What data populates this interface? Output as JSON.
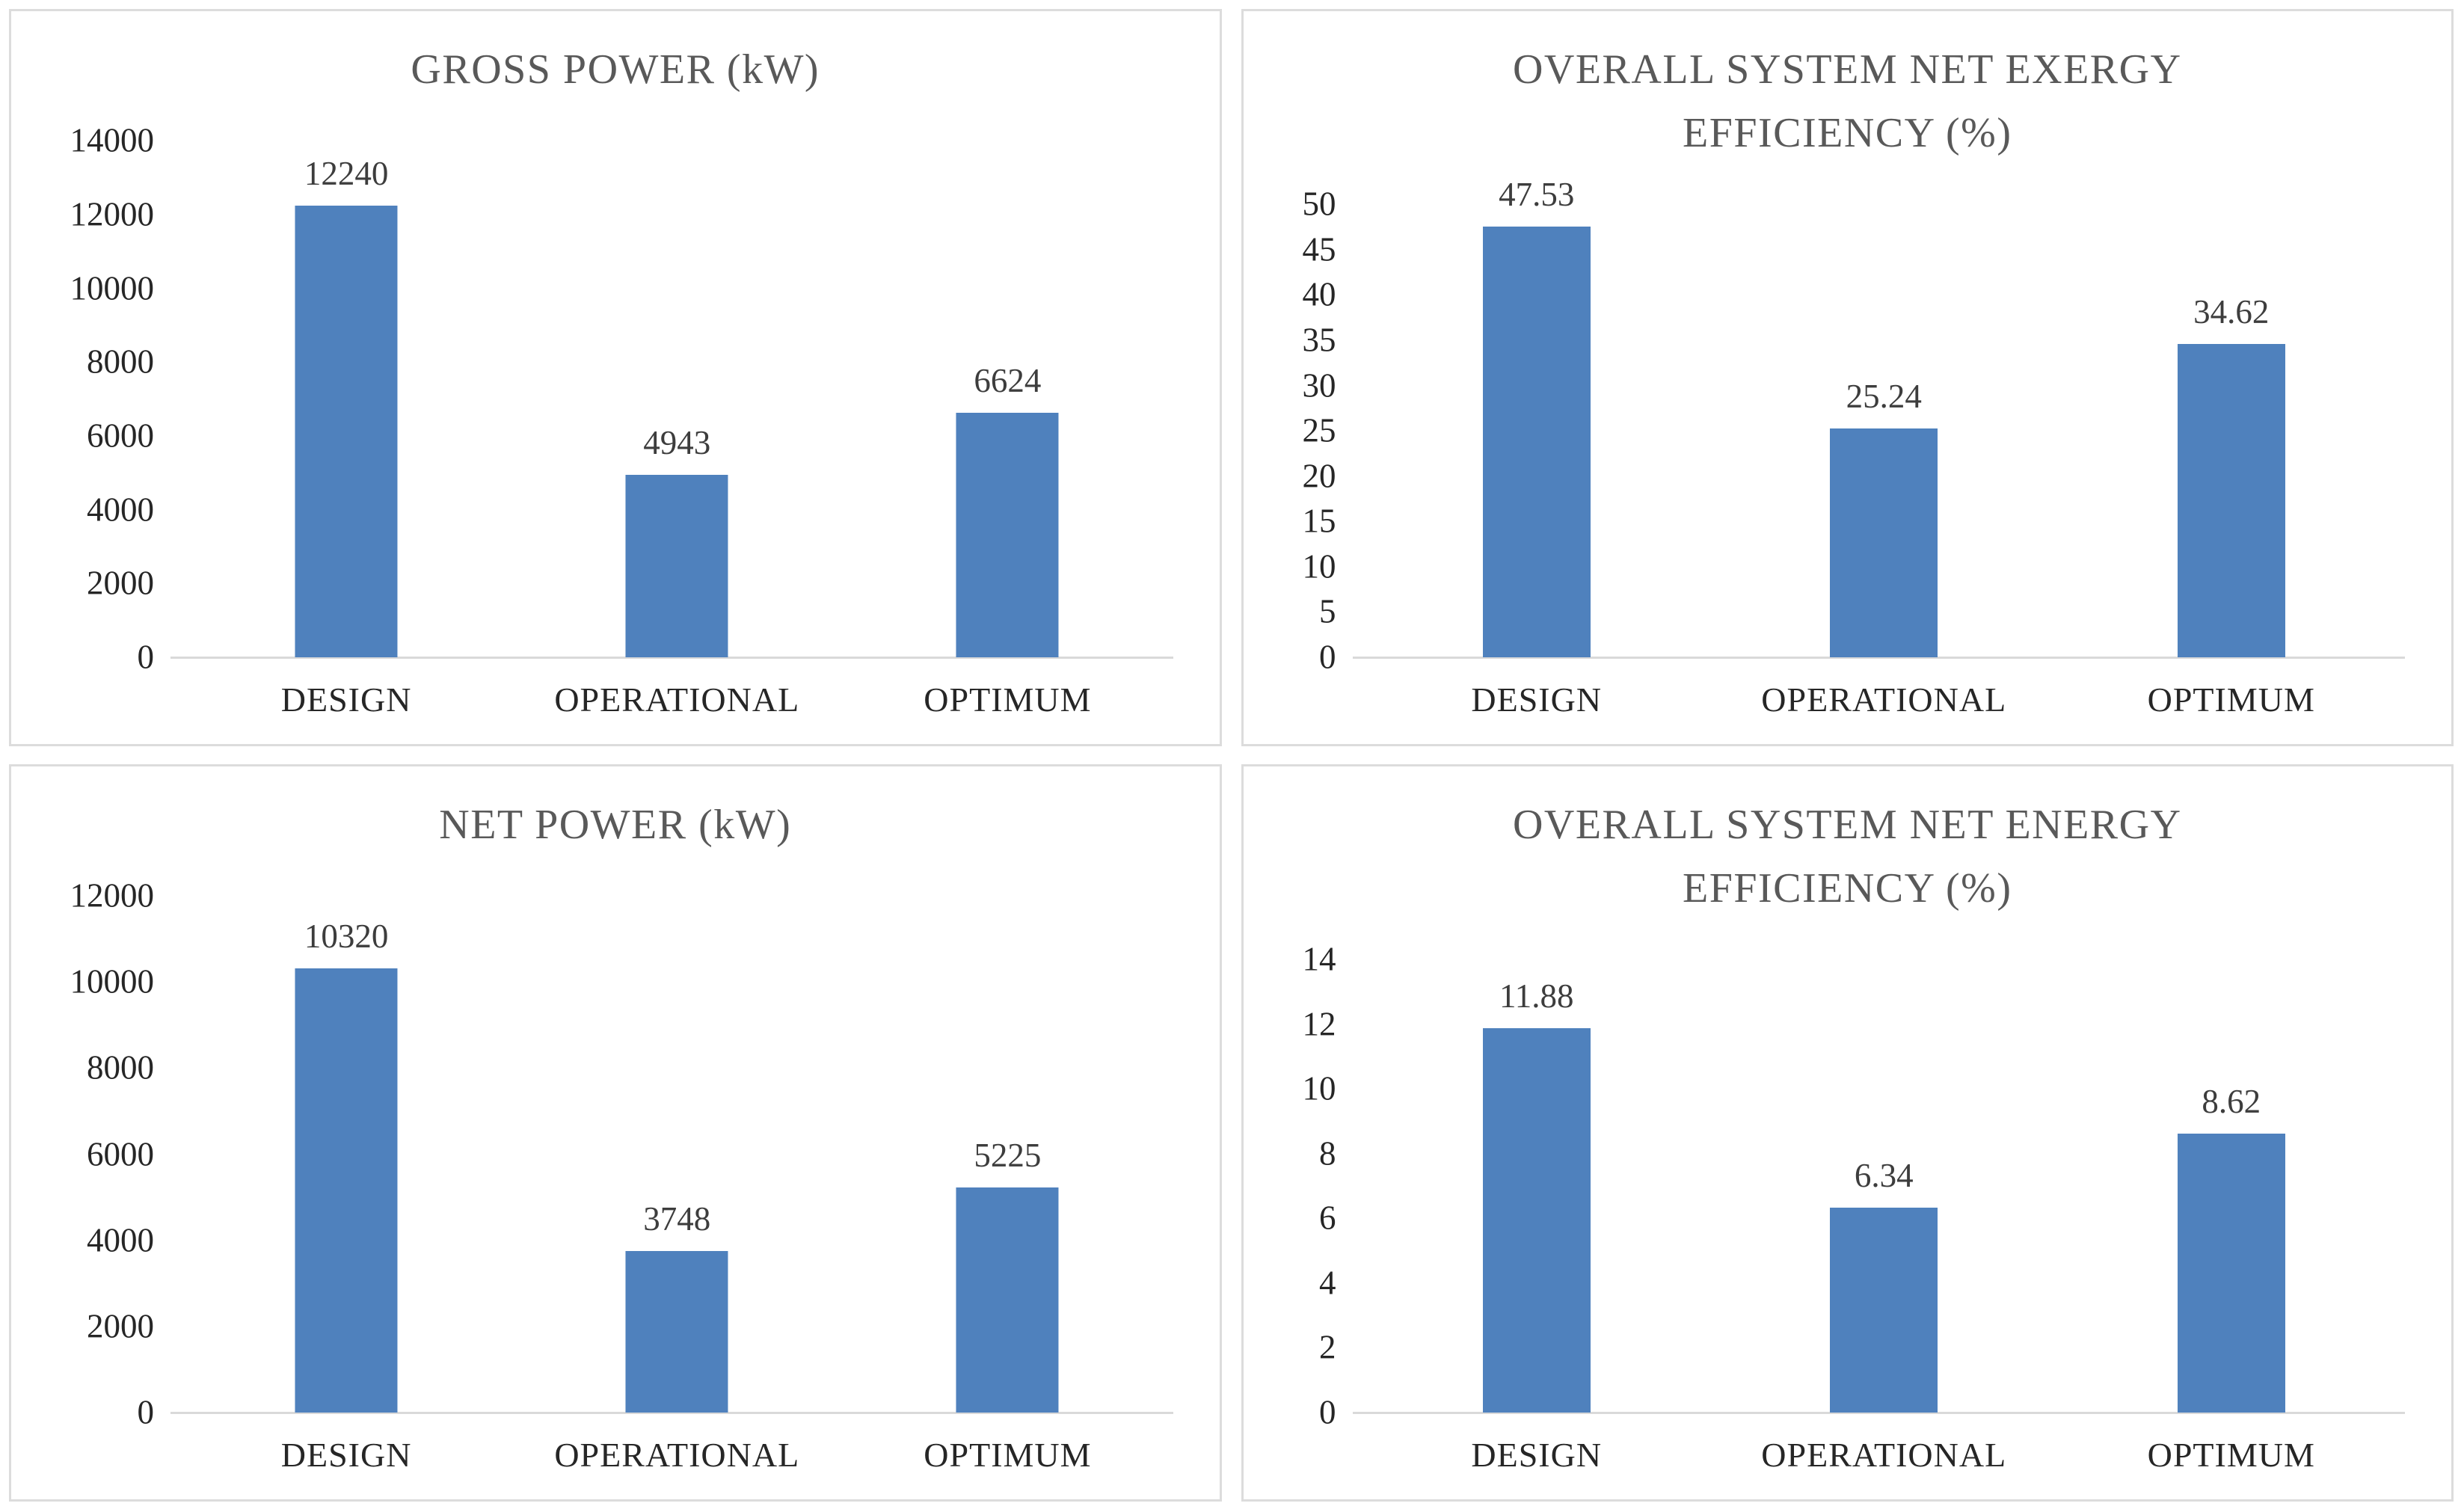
{
  "figure": {
    "kind": "2x2-bar-chart-grid",
    "background": "#ffffff"
  },
  "colors": {
    "bar": "#4f81bd",
    "title_text": "#595959",
    "axis_text": "#262626",
    "data_label_text": "#3d3d3d",
    "axis_line": "#d9d9d9",
    "panel_border": "#dcdcdc"
  },
  "chart_data": [
    {
      "type": "bar",
      "title": "GROSS POWER (kW)",
      "title_lines": [
        "GROSS POWER (kW)"
      ],
      "categories": [
        "DESIGN",
        "OPERATIONAL",
        "OPTIMUM"
      ],
      "values": [
        12240,
        4943,
        6624
      ],
      "value_labels": [
        "12240",
        "4943",
        "6624"
      ],
      "xlabel": "",
      "ylabel": "",
      "ylim": [
        0,
        14000
      ],
      "yticks": [
        0,
        2000,
        4000,
        6000,
        8000,
        10000,
        12000,
        14000
      ],
      "ytick_labels": [
        "0",
        "2000",
        "4000",
        "6000",
        "8000",
        "10000",
        "12000",
        "14000"
      ],
      "grid": false,
      "legend": false
    },
    {
      "type": "bar",
      "title": "OVERALL SYSTEM NET EXERGY EFFICIENCY (%)",
      "title_lines": [
        "OVERALL SYSTEM NET EXERGY",
        "EFFICIENCY (%)"
      ],
      "categories": [
        "DESIGN",
        "OPERATIONAL",
        "OPTIMUM"
      ],
      "values": [
        47.53,
        25.24,
        34.62
      ],
      "value_labels": [
        "47.53",
        "25.24",
        "34.62"
      ],
      "xlabel": "",
      "ylabel": "",
      "ylim": [
        0,
        50
      ],
      "yticks": [
        0,
        5,
        10,
        15,
        20,
        25,
        30,
        35,
        40,
        45,
        50
      ],
      "ytick_labels": [
        "0",
        "5",
        "10",
        "15",
        "20",
        "25",
        "30",
        "35",
        "40",
        "45",
        "50"
      ],
      "grid": false,
      "legend": false
    },
    {
      "type": "bar",
      "title": "NET POWER (kW)",
      "title_lines": [
        "NET POWER (kW)"
      ],
      "categories": [
        "DESIGN",
        "OPERATIONAL",
        "OPTIMUM"
      ],
      "values": [
        10320,
        3748,
        5225
      ],
      "value_labels": [
        "10320",
        "3748",
        "5225"
      ],
      "xlabel": "",
      "ylabel": "",
      "ylim": [
        0,
        12000
      ],
      "yticks": [
        0,
        2000,
        4000,
        6000,
        8000,
        10000,
        12000
      ],
      "ytick_labels": [
        "0",
        "2000",
        "4000",
        "6000",
        "8000",
        "10000",
        "12000"
      ],
      "grid": false,
      "legend": false
    },
    {
      "type": "bar",
      "title": "OVERALL SYSTEM NET ENERGY EFFICIENCY (%)",
      "title_lines": [
        "OVERALL SYSTEM NET ENERGY",
        "EFFICIENCY (%)"
      ],
      "categories": [
        "DESIGN",
        "OPERATIONAL",
        "OPTIMUM"
      ],
      "values": [
        11.88,
        6.34,
        8.62
      ],
      "value_labels": [
        "11.88",
        "6.34",
        "8.62"
      ],
      "xlabel": "",
      "ylabel": "",
      "ylim": [
        0,
        14
      ],
      "yticks": [
        0,
        2,
        4,
        6,
        8,
        10,
        12,
        14
      ],
      "ytick_labels": [
        "0",
        "2",
        "4",
        "6",
        "8",
        "10",
        "12",
        "14"
      ],
      "grid": false,
      "legend": false
    }
  ]
}
